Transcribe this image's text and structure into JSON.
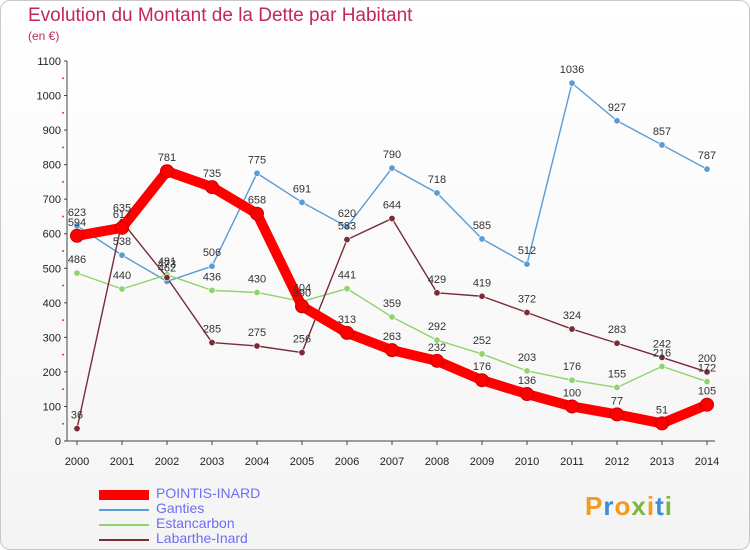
{
  "title": "Evolution du Montant de la Dette par Habitant",
  "subtitle": "(en €)",
  "logo": {
    "letters": [
      "P",
      "r",
      "o",
      "x",
      "i",
      "t",
      "i"
    ],
    "colors": [
      "#f29b1e",
      "#3b8fd6",
      "#f29b1e",
      "#7ab83b",
      "#f29b1e",
      "#3b8fd6",
      "#7ab83b"
    ]
  },
  "chart_data": {
    "type": "line",
    "x": [
      "2000",
      "2001",
      "2002",
      "2003",
      "2004",
      "2005",
      "2006",
      "2007",
      "2008",
      "2009",
      "2010",
      "2011",
      "2012",
      "2013",
      "2014"
    ],
    "ylim": [
      0,
      1100
    ],
    "yticks": [
      "0",
      "100",
      "200",
      "300",
      "400",
      "500",
      "600",
      "700",
      "800",
      "900",
      "1000",
      "1100"
    ],
    "grid": false,
    "legend_position": "bottom-left",
    "series": [
      {
        "name": "Ganties",
        "color": "#5b9bd5",
        "values": [
          623,
          538,
          462,
          506,
          775,
          691,
          620,
          790,
          718,
          585,
          512,
          1036,
          927,
          857,
          787
        ],
        "labels": [
          "623",
          "538",
          "462",
          "506",
          "775",
          "691",
          "620",
          "790",
          "718",
          "585",
          "512",
          "1036",
          "927",
          "857",
          "787"
        ]
      },
      {
        "name": "Estancarbon",
        "color": "#8fd36b",
        "values": [
          486,
          440,
          481,
          436,
          430,
          404,
          441,
          359,
          292,
          252,
          203,
          176,
          155,
          216,
          172
        ],
        "labels": [
          "486",
          "440",
          "481",
          "436",
          "430",
          "404",
          "441",
          "359",
          "292",
          "252",
          "203",
          "176",
          "155",
          "216",
          "172"
        ]
      },
      {
        "name": "Labarthe-Inard",
        "color": "#7a2b35",
        "values": [
          36,
          635,
          473,
          285,
          275,
          256,
          583,
          644,
          429,
          419,
          372,
          324,
          283,
          242,
          200
        ],
        "labels": [
          "36",
          "635",
          "473",
          "285",
          "275",
          "256",
          "583",
          "644",
          "429",
          "419",
          "372",
          "324",
          "283",
          "242",
          "200"
        ]
      },
      {
        "name": "POINTIS-INARD",
        "color": "#ff0000",
        "values": [
          594,
          617,
          781,
          735,
          658,
          390,
          313,
          263,
          232,
          176,
          136,
          100,
          77,
          51,
          105
        ],
        "labels": [
          "594",
          "617",
          "781",
          "735",
          "658",
          "390",
          "313",
          "263",
          "232",
          "176",
          "136",
          "100",
          "77",
          "51",
          "105"
        ]
      }
    ],
    "legend": [
      {
        "label": "POINTIS-INARD",
        "color": "#ff0000"
      },
      {
        "label": "Ganties",
        "color": "#5b9bd5"
      },
      {
        "label": "Estancarbon",
        "color": "#8fd36b"
      },
      {
        "label": "Labarthe-Inard",
        "color": "#7a2b35"
      }
    ]
  }
}
